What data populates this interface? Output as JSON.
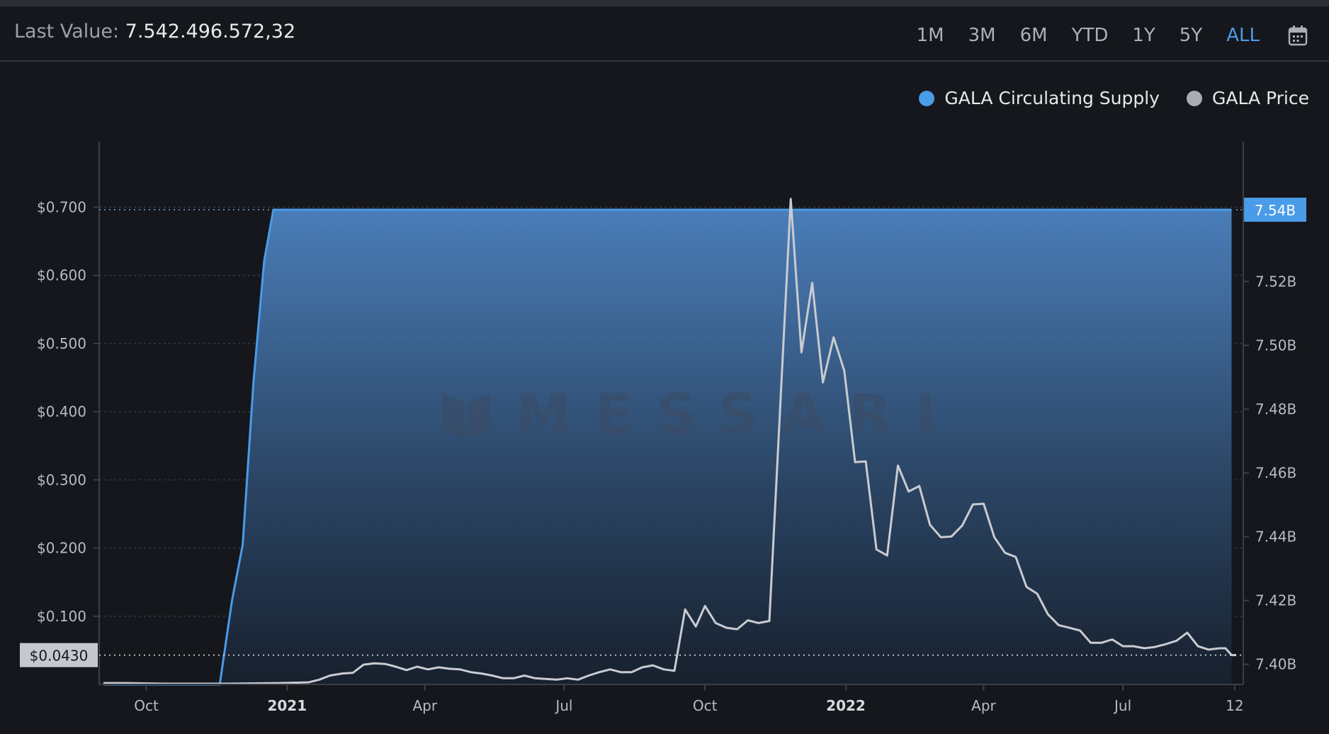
{
  "header": {
    "last_value_label": "Last Value:",
    "last_value": "7.542.496.572,32"
  },
  "ranges": [
    {
      "label": "1M",
      "active": false
    },
    {
      "label": "3M",
      "active": false
    },
    {
      "label": "6M",
      "active": false
    },
    {
      "label": "YTD",
      "active": false
    },
    {
      "label": "1Y",
      "active": false
    },
    {
      "label": "5Y",
      "active": false
    },
    {
      "label": "ALL",
      "active": true
    }
  ],
  "icons": {
    "calendar": "calendar-icon"
  },
  "legend": [
    {
      "label": "GALA Circulating Supply",
      "color": "#4a9be8"
    },
    {
      "label": "GALA Price",
      "color": "#a9adb6"
    }
  ],
  "watermark": "MESSARI",
  "chart_data": {
    "type": "line",
    "title": "",
    "xlabel": "",
    "x_ticks": [
      {
        "label": "Oct",
        "date": "2020-10-01",
        "bold": false
      },
      {
        "label": "2021",
        "date": "2021-01-01",
        "bold": true
      },
      {
        "label": "Apr",
        "date": "2021-04-01",
        "bold": false
      },
      {
        "label": "Jul",
        "date": "2021-07-01",
        "bold": false
      },
      {
        "label": "Oct",
        "date": "2021-10-01",
        "bold": false
      },
      {
        "label": "2022",
        "date": "2022-01-01",
        "bold": true
      },
      {
        "label": "Apr",
        "date": "2022-04-01",
        "bold": false
      },
      {
        "label": "Jul",
        "date": "2022-07-01",
        "bold": false
      },
      {
        "label": "12",
        "date": "2022-09-12",
        "bold": false
      }
    ],
    "x_range": [
      "2020-09-03",
      "2022-09-13"
    ],
    "y_left": {
      "ticks": [
        "$0.100",
        "$0.200",
        "$0.300",
        "$0.400",
        "$0.500",
        "$0.600",
        "$0.700"
      ],
      "tick_values": [
        0.1,
        0.2,
        0.3,
        0.4,
        0.5,
        0.6,
        0.7
      ],
      "range": [
        0,
        0.715
      ]
    },
    "y_right": {
      "ticks": [
        "7.40B",
        "7.42B",
        "7.44B",
        "7.46B",
        "7.48B",
        "7.50B",
        "7.52B"
      ],
      "tick_values": [
        7.4,
        7.42,
        7.44,
        7.46,
        7.48,
        7.5,
        7.52
      ],
      "range": [
        7.3937,
        7.5465
      ],
      "unit": "B"
    },
    "grid": true,
    "legend_position": "top-right",
    "current_markers": {
      "price_label": "$0.0430",
      "price_value": 0.043,
      "supply_label": "7.54B",
      "supply_value": 7.5425
    },
    "series": [
      {
        "name": "GALA Circulating Supply",
        "axis": "right",
        "color": "#4a9be8",
        "style": "area",
        "points": [
          [
            "2020-09-03",
            7.3937
          ],
          [
            "2020-11-18",
            7.3937
          ],
          [
            "2020-11-26",
            7.42
          ],
          [
            "2020-12-03",
            7.4375
          ],
          [
            "2020-12-10",
            7.4885
          ],
          [
            "2020-12-17",
            7.5265
          ],
          [
            "2020-12-23",
            7.5425
          ],
          [
            "2022-09-10",
            7.5425
          ]
        ]
      },
      {
        "name": "GALA Price",
        "axis": "left",
        "color": "#c9cbd1",
        "style": "line",
        "points": [
          [
            "2020-09-03",
            0.002
          ],
          [
            "2020-09-18",
            0.002
          ],
          [
            "2020-10-13",
            0.001
          ],
          [
            "2020-11-22",
            0.001
          ],
          [
            "2020-12-27",
            0.002
          ],
          [
            "2021-01-15",
            0.003
          ],
          [
            "2021-01-22",
            0.007
          ],
          [
            "2021-01-29",
            0.013
          ],
          [
            "2021-02-06",
            0.016
          ],
          [
            "2021-02-13",
            0.017
          ],
          [
            "2021-02-20",
            0.029
          ],
          [
            "2021-02-27",
            0.031
          ],
          [
            "2021-03-06",
            0.03
          ],
          [
            "2021-03-13",
            0.026
          ],
          [
            "2021-03-20",
            0.021
          ],
          [
            "2021-03-27",
            0.026
          ],
          [
            "2021-04-03",
            0.022
          ],
          [
            "2021-04-10",
            0.025
          ],
          [
            "2021-04-17",
            0.023
          ],
          [
            "2021-04-24",
            0.022
          ],
          [
            "2021-05-01",
            0.018
          ],
          [
            "2021-05-08",
            0.016
          ],
          [
            "2021-05-15",
            0.013
          ],
          [
            "2021-05-22",
            0.009
          ],
          [
            "2021-05-29",
            0.009
          ],
          [
            "2021-06-05",
            0.013
          ],
          [
            "2021-06-12",
            0.009
          ],
          [
            "2021-06-19",
            0.008
          ],
          [
            "2021-06-26",
            0.007
          ],
          [
            "2021-07-03",
            0.009
          ],
          [
            "2021-07-10",
            0.007
          ],
          [
            "2021-07-17",
            0.013
          ],
          [
            "2021-07-24",
            0.018
          ],
          [
            "2021-07-31",
            0.022
          ],
          [
            "2021-08-07",
            0.018
          ],
          [
            "2021-08-14",
            0.018
          ],
          [
            "2021-08-21",
            0.025
          ],
          [
            "2021-08-28",
            0.028
          ],
          [
            "2021-09-04",
            0.022
          ],
          [
            "2021-09-11",
            0.02
          ],
          [
            "2021-09-18",
            0.11
          ],
          [
            "2021-09-25",
            0.085
          ],
          [
            "2021-10-01",
            0.115
          ],
          [
            "2021-10-08",
            0.09
          ],
          [
            "2021-10-15",
            0.083
          ],
          [
            "2021-10-22",
            0.081
          ],
          [
            "2021-10-29",
            0.094
          ],
          [
            "2021-11-05",
            0.09
          ],
          [
            "2021-11-12",
            0.093
          ],
          [
            "2021-11-26",
            0.712
          ],
          [
            "2021-12-03",
            0.487
          ],
          [
            "2021-12-10",
            0.589
          ],
          [
            "2021-12-17",
            0.443
          ],
          [
            "2021-12-24",
            0.509
          ],
          [
            "2021-12-31",
            0.46
          ],
          [
            "2022-01-07",
            0.326
          ],
          [
            "2022-01-14",
            0.327
          ],
          [
            "2022-01-21",
            0.198
          ],
          [
            "2022-01-28",
            0.189
          ],
          [
            "2022-02-04",
            0.321
          ],
          [
            "2022-02-11",
            0.283
          ],
          [
            "2022-02-18",
            0.291
          ],
          [
            "2022-02-25",
            0.234
          ],
          [
            "2022-03-04",
            0.216
          ],
          [
            "2022-03-11",
            0.217
          ],
          [
            "2022-03-18",
            0.233
          ],
          [
            "2022-03-25",
            0.264
          ],
          [
            "2022-04-01",
            0.265
          ],
          [
            "2022-04-08",
            0.216
          ],
          [
            "2022-04-15",
            0.193
          ],
          [
            "2022-04-22",
            0.187
          ],
          [
            "2022-04-29",
            0.143
          ],
          [
            "2022-05-06",
            0.133
          ],
          [
            "2022-05-13",
            0.103
          ],
          [
            "2022-05-20",
            0.087
          ],
          [
            "2022-05-27",
            0.083
          ],
          [
            "2022-06-03",
            0.079
          ],
          [
            "2022-06-10",
            0.061
          ],
          [
            "2022-06-17",
            0.061
          ],
          [
            "2022-06-24",
            0.066
          ],
          [
            "2022-07-01",
            0.056
          ],
          [
            "2022-07-08",
            0.056
          ],
          [
            "2022-07-15",
            0.053
          ],
          [
            "2022-07-22",
            0.055
          ],
          [
            "2022-07-29",
            0.059
          ],
          [
            "2022-08-05",
            0.064
          ],
          [
            "2022-08-12",
            0.076
          ],
          [
            "2022-08-19",
            0.056
          ],
          [
            "2022-08-26",
            0.051
          ],
          [
            "2022-09-02",
            0.053
          ],
          [
            "2022-09-06",
            0.053
          ],
          [
            "2022-09-10",
            0.043
          ],
          [
            "2022-09-13",
            0.043
          ]
        ]
      }
    ]
  }
}
